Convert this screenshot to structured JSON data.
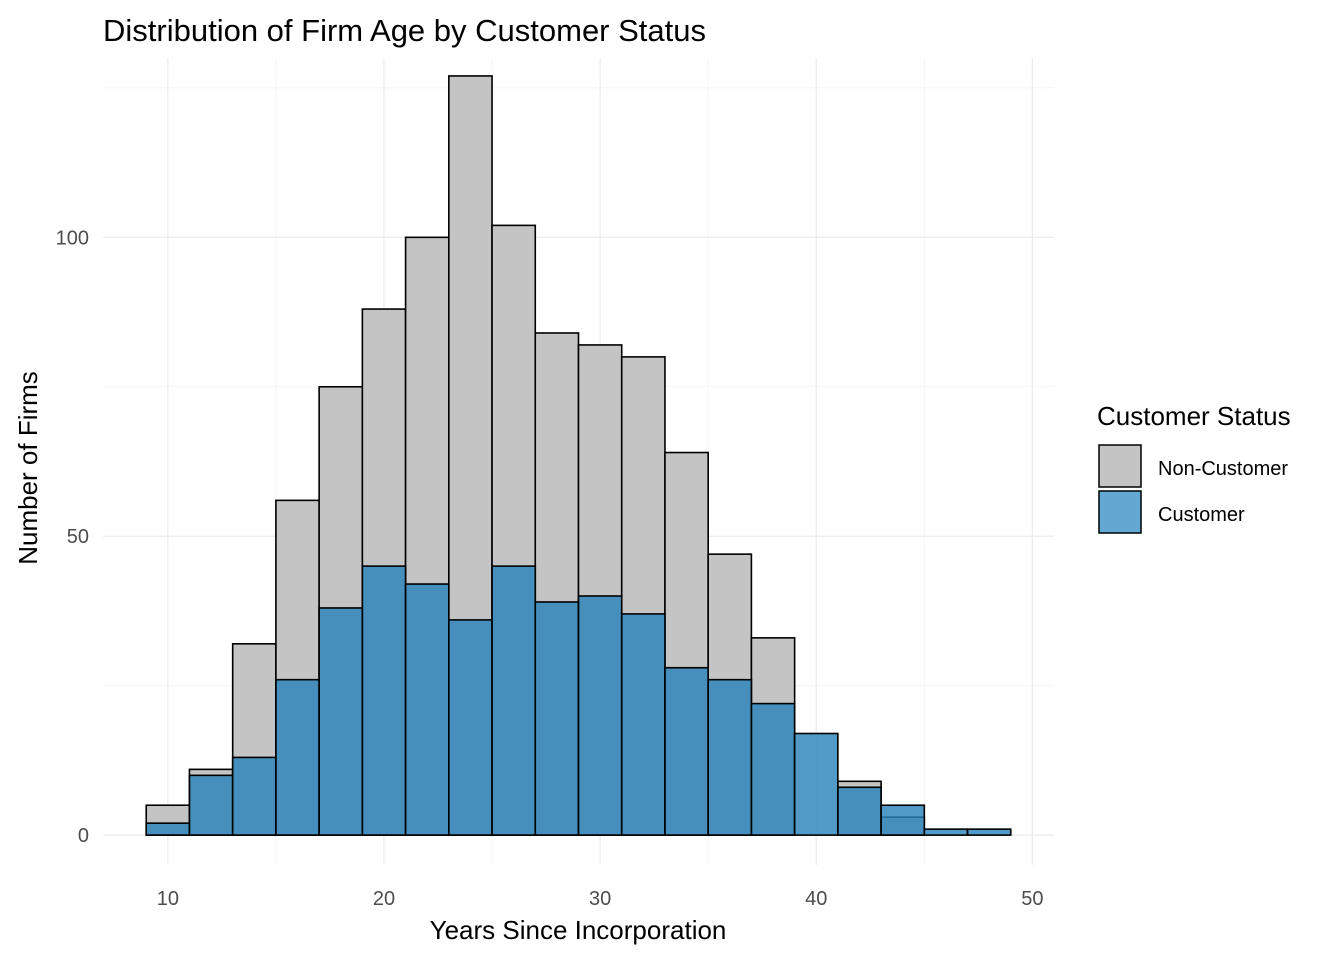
{
  "chart_data": {
    "type": "bar",
    "subtype": "overlaid-histogram",
    "title": "Distribution of Firm Age by Customer Status",
    "xlabel": "Years Since Incorporation",
    "ylabel": "Number of Firms",
    "xlim": [
      7,
      51
    ],
    "ylim": [
      -5,
      130
    ],
    "xticks": [
      10,
      20,
      30,
      40,
      50
    ],
    "yticks": [
      0,
      50,
      100
    ],
    "bin_width": 2,
    "bin_starts": [
      9,
      11,
      13,
      15,
      17,
      19,
      21,
      23,
      25,
      27,
      29,
      31,
      33,
      35,
      37,
      39,
      41,
      43,
      45,
      47
    ],
    "series": [
      {
        "name": "Non-Customer",
        "color": "#c4c4c4",
        "values": [
          5,
          11,
          32,
          56,
          75,
          88,
          100,
          127,
          102,
          84,
          82,
          80,
          64,
          47,
          33,
          0,
          9,
          3,
          0,
          0
        ]
      },
      {
        "name": "Customer",
        "color": "#2b83ba",
        "values": [
          2,
          10,
          13,
          26,
          38,
          45,
          42,
          36,
          45,
          39,
          40,
          37,
          28,
          26,
          22,
          17,
          8,
          5,
          1,
          1
        ]
      }
    ],
    "grid": true,
    "legend": {
      "title": "Customer Status",
      "placement": "right",
      "entries": [
        {
          "label": "Non-Customer",
          "color": "#c4c4c4"
        },
        {
          "label": "Customer",
          "color": "#63a7d3"
        }
      ]
    }
  }
}
